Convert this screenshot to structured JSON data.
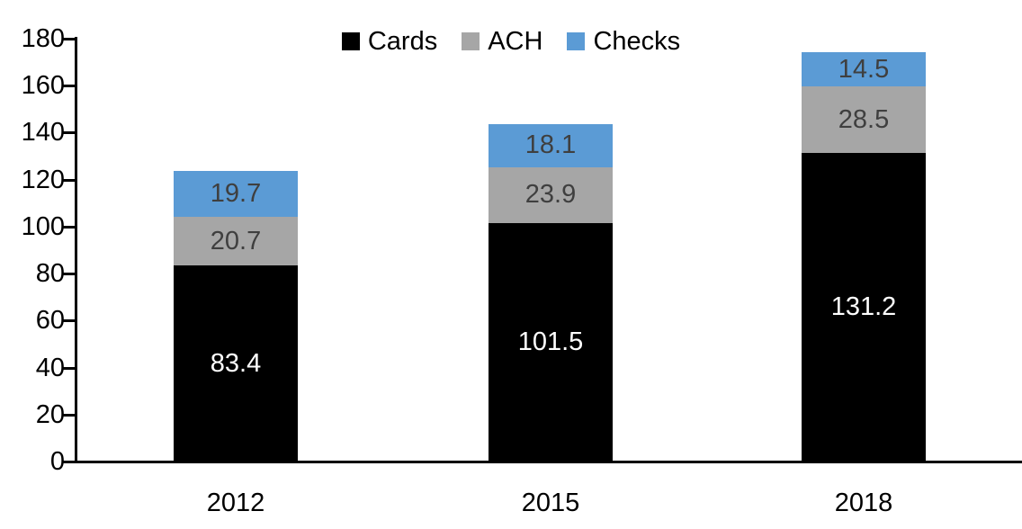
{
  "chart_data": {
    "type": "bar",
    "stacked": true,
    "title": "",
    "xlabel": "",
    "ylabel": "",
    "categories": [
      "2012",
      "2015",
      "2018"
    ],
    "series": [
      {
        "name": "Cards",
        "color": "#000000",
        "label_color": "#ffffff",
        "values": [
          83.4,
          101.5,
          131.2
        ]
      },
      {
        "name": "ACH",
        "color": "#a6a6a6",
        "label_color": "#3f3f3f",
        "values": [
          20.7,
          23.9,
          28.5
        ]
      },
      {
        "name": "Checks",
        "color": "#5b9bd5",
        "label_color": "#3f3f3f",
        "values": [
          19.7,
          18.1,
          14.5
        ]
      }
    ],
    "ylim": [
      0,
      180
    ],
    "ytick_step": 20,
    "yticks": [
      "0",
      "20",
      "40",
      "60",
      "80",
      "100",
      "120",
      "140",
      "160",
      "180"
    ],
    "legend_position": "top-center",
    "legend_labels": [
      "Cards",
      "ACH",
      "Checks"
    ],
    "grid": false,
    "axis_color": "#000000",
    "background_color": "#ffffff"
  }
}
